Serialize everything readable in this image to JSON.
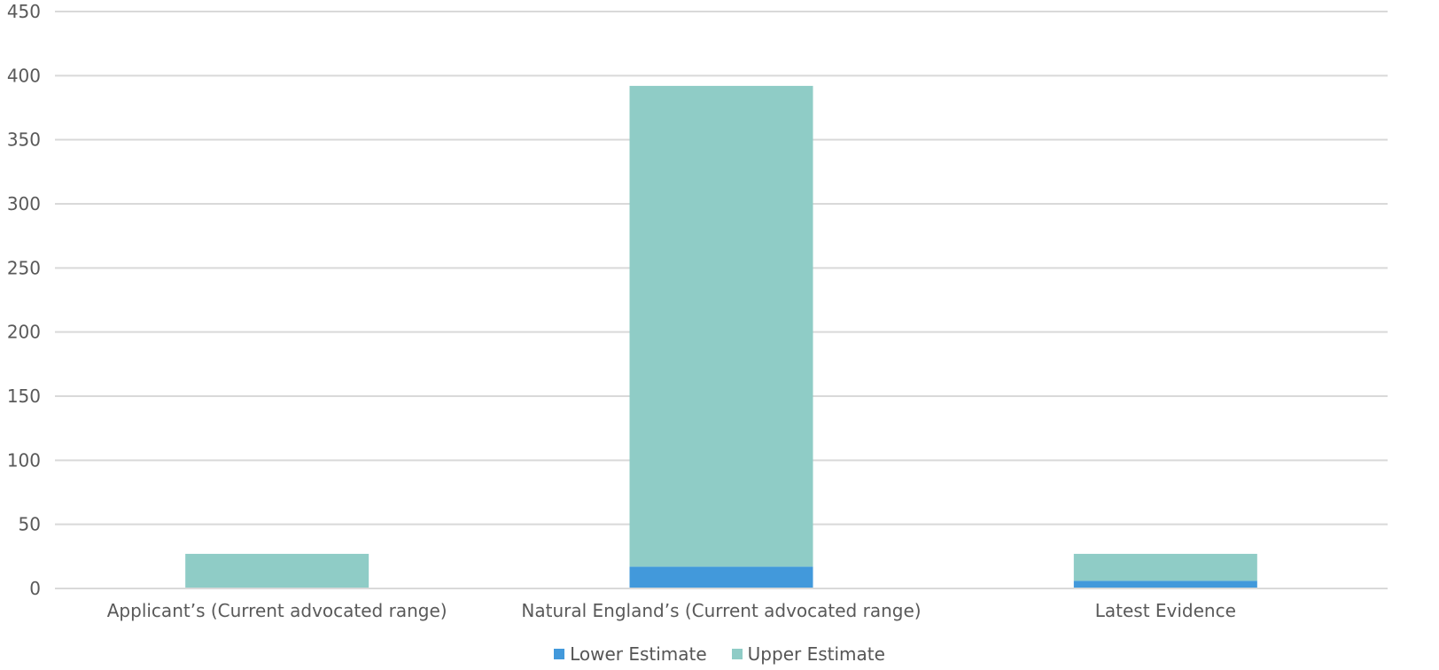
{
  "chart_data": {
    "type": "bar",
    "stacked": true,
    "categories": [
      "Applicant’s (Current advocated range)",
      "Natural England’s (Current advocated range)",
      "Latest Evidence"
    ],
    "series": [
      {
        "name": "Lower Estimate",
        "color": "#4299DB",
        "values": [
          0,
          17,
          6
        ]
      },
      {
        "name": "Upper Estimate",
        "color": "#8FCCC6",
        "values": [
          27,
          375,
          21
        ]
      }
    ],
    "ylim": [
      0,
      450
    ],
    "yticks": [
      0,
      50,
      100,
      150,
      200,
      250,
      300,
      350,
      400,
      450
    ],
    "grid": true,
    "legend_position": "bottom"
  }
}
